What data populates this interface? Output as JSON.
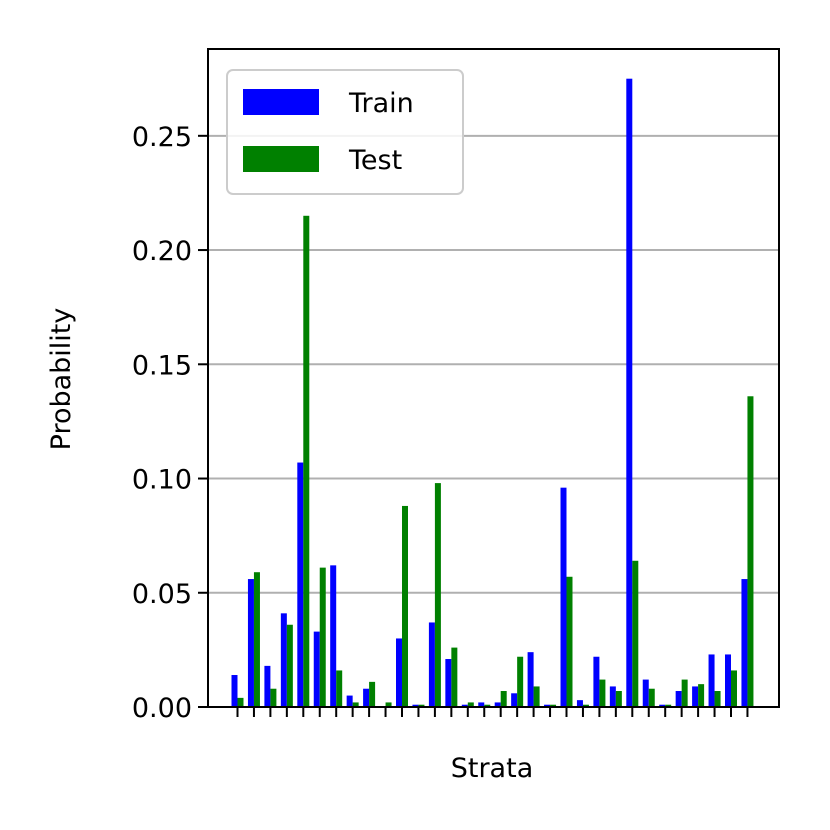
{
  "chart_data": {
    "type": "bar",
    "title": "",
    "xlabel": "Strata",
    "ylabel": "Probability",
    "ylim": [
      0,
      0.288
    ],
    "yticks": [
      "0.00",
      "0.05",
      "0.10",
      "0.15",
      "0.20",
      "0.25"
    ],
    "grid": "horizontal",
    "legend_position": "top-left",
    "categories": 32,
    "series": [
      {
        "name": "Train",
        "color": "#0000ff",
        "values": [
          0.014,
          0.056,
          0.018,
          0.041,
          0.107,
          0.033,
          0.062,
          0.005,
          0.008,
          0.0,
          0.03,
          0.001,
          0.037,
          0.021,
          0.001,
          0.002,
          0.002,
          0.006,
          0.024,
          0.001,
          0.096,
          0.003,
          0.022,
          0.009,
          0.275,
          0.012,
          0.001,
          0.007,
          0.009,
          0.023,
          0.023,
          0.056
        ]
      },
      {
        "name": "Test",
        "color": "#008000",
        "values": [
          0.004,
          0.059,
          0.008,
          0.036,
          0.215,
          0.061,
          0.016,
          0.002,
          0.011,
          0.002,
          0.088,
          0.001,
          0.098,
          0.026,
          0.002,
          0.001,
          0.007,
          0.022,
          0.009,
          0.001,
          0.057,
          0.001,
          0.012,
          0.007,
          0.064,
          0.008,
          0.001,
          0.012,
          0.01,
          0.007,
          0.016,
          0.136
        ]
      }
    ]
  }
}
